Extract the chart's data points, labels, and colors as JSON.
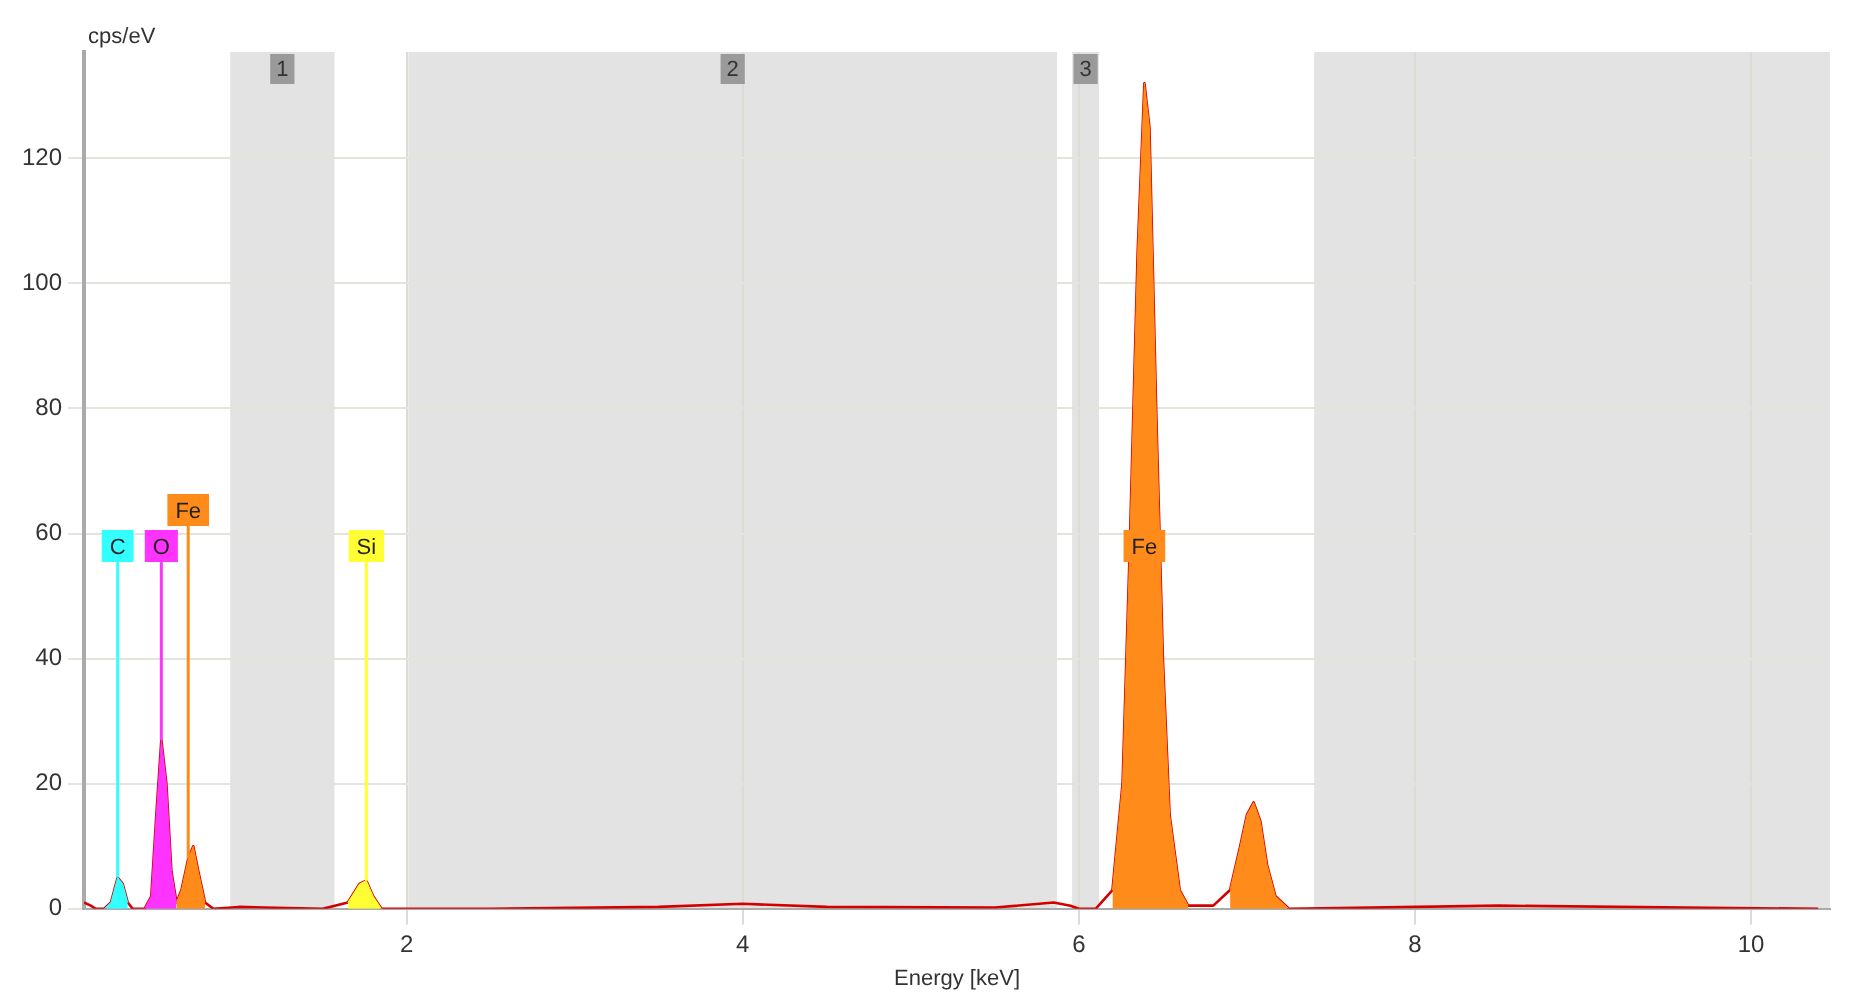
{
  "chart_data": {
    "type": "line",
    "xlabel": "Energy [keV]",
    "ylabel": "cps/eV",
    "xlim": [
      0.08,
      10.47
    ],
    "ylim": [
      0,
      137
    ],
    "xticks": [
      2,
      4,
      6,
      8,
      10
    ],
    "yticks": [
      0,
      20,
      40,
      60,
      80,
      100,
      120
    ],
    "grid": true,
    "legend": false,
    "series": [
      {
        "color": "#d40000",
        "x": [
          0.08,
          0.12,
          0.15,
          0.2,
          0.24,
          0.28,
          0.31,
          0.34,
          0.37,
          0.44,
          0.48,
          0.51,
          0.54,
          0.57,
          0.6,
          0.63,
          0.66,
          0.7,
          0.73,
          0.76,
          0.8,
          0.85,
          1.0,
          1.5,
          1.65,
          1.72,
          1.76,
          1.8,
          1.85,
          2.5,
          3.5,
          4.0,
          4.5,
          5.5,
          5.85,
          5.95,
          6.0,
          6.1,
          6.2,
          6.26,
          6.3,
          6.35,
          6.39,
          6.42,
          6.46,
          6.5,
          6.54,
          6.6,
          6.65,
          6.8,
          6.9,
          6.96,
          7.0,
          7.04,
          7.08,
          7.12,
          7.17,
          7.25,
          8.5,
          10.4
        ],
        "values": [
          1,
          0.5,
          0,
          0,
          1,
          5,
          4,
          1,
          0,
          0,
          2,
          15,
          27,
          20,
          6,
          1,
          3,
          8,
          10,
          6,
          1,
          0,
          0.3,
          0,
          1,
          4,
          4.5,
          2,
          0,
          0,
          0.3,
          0.8,
          0.3,
          0.2,
          1,
          0.5,
          0,
          0,
          3,
          20,
          55,
          105,
          132,
          125,
          80,
          40,
          15,
          3,
          0.5,
          0.5,
          3,
          10,
          15,
          17,
          14,
          7,
          2,
          0,
          0.5,
          0
        ]
      },
      {
        "type": "area",
        "color": "#33ffff",
        "x": [
          0.2,
          0.24,
          0.28,
          0.31,
          0.34
        ],
        "values": [
          0,
          1,
          5,
          4,
          1
        ]
      },
      {
        "type": "area",
        "color": "#ff33ff",
        "x": [
          0.44,
          0.48,
          0.51,
          0.54,
          0.57,
          0.6,
          0.63
        ],
        "values": [
          0,
          2,
          15,
          27,
          20,
          6,
          1
        ]
      },
      {
        "type": "area",
        "color": "#ff8c1a",
        "x": [
          0.63,
          0.66,
          0.7,
          0.73,
          0.76,
          0.8
        ],
        "values": [
          1,
          3,
          8,
          10,
          6,
          1
        ]
      },
      {
        "type": "area",
        "color": "#ffff33",
        "x": [
          1.65,
          1.72,
          1.76,
          1.8,
          1.85
        ],
        "values": [
          1,
          4,
          4.5,
          2,
          0
        ]
      },
      {
        "type": "area",
        "color": "#ff8c1a",
        "x": [
          6.2,
          6.26,
          6.3,
          6.35,
          6.39,
          6.42,
          6.46,
          6.5,
          6.54,
          6.6,
          6.65,
          6.8,
          6.9,
          6.96,
          7.0,
          7.04,
          7.08,
          7.12,
          7.17,
          7.25
        ],
        "values": [
          3,
          20,
          55,
          105,
          132,
          125,
          80,
          40,
          15,
          3,
          0.5,
          null,
          3,
          10,
          15,
          17,
          14,
          7,
          2,
          0
        ]
      }
    ],
    "annotations": [
      {
        "text": "C",
        "x": 0.28,
        "y": 5
      },
      {
        "text": "O",
        "x": 0.54,
        "y": 27
      },
      {
        "text": "Fe",
        "x": 0.7,
        "y": 8
      },
      {
        "text": "Si",
        "x": 1.76,
        "y": 4.5
      },
      "Fe"
    ],
    "bands": [
      {
        "axis": "x",
        "from": 0.95,
        "to": 1.57,
        "label": "1",
        "color": "#e3e3e3"
      },
      {
        "axis": "x",
        "from": 2.01,
        "to": 5.87,
        "label": "2",
        "color": "#e3e3e3"
      },
      {
        "axis": "x",
        "from": 5.96,
        "to": 6.12,
        "label": "3",
        "color": "#e3e3e3"
      },
      {
        "axis": "x",
        "from": 7.4,
        "to": 10.47,
        "color": "#e3e3e3"
      }
    ]
  }
}
